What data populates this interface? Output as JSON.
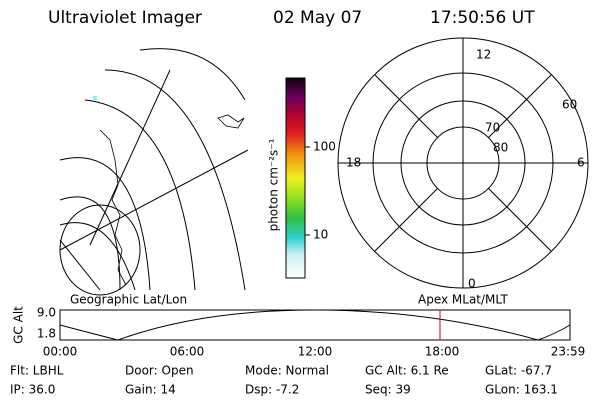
{
  "header": {
    "title": "Ultraviolet Imager",
    "date": "02 May 07",
    "time": "17:50:56 UT"
  },
  "colorbar": {
    "label": "photon cm⁻²s⁻¹",
    "ticks": [
      "100",
      "10"
    ]
  },
  "polar": {
    "mlt_labels": [
      "12",
      "6",
      "0",
      "18"
    ],
    "lat_labels": [
      "60",
      "70",
      "80"
    ]
  },
  "panel_labels": {
    "left": "Geographic Lat/Lon",
    "right": "Apex MLat/MLT"
  },
  "altitude": {
    "axis_label": "GC Alt",
    "yticks": [
      "9.0",
      "1.8"
    ],
    "xticks": [
      "00:00",
      "06:00",
      "12:00",
      "18:00",
      "23:59"
    ]
  },
  "info": [
    [
      "Flt: LBHL",
      "Door: Open",
      "Mode: Normal",
      "GC Alt: 6.1 Re",
      "GLat: -67.7"
    ],
    [
      "IP: 36.0",
      "Gain: 14",
      "Dsp: -7.2",
      "Seq: 39",
      "GLon: 163.1"
    ]
  ]
}
